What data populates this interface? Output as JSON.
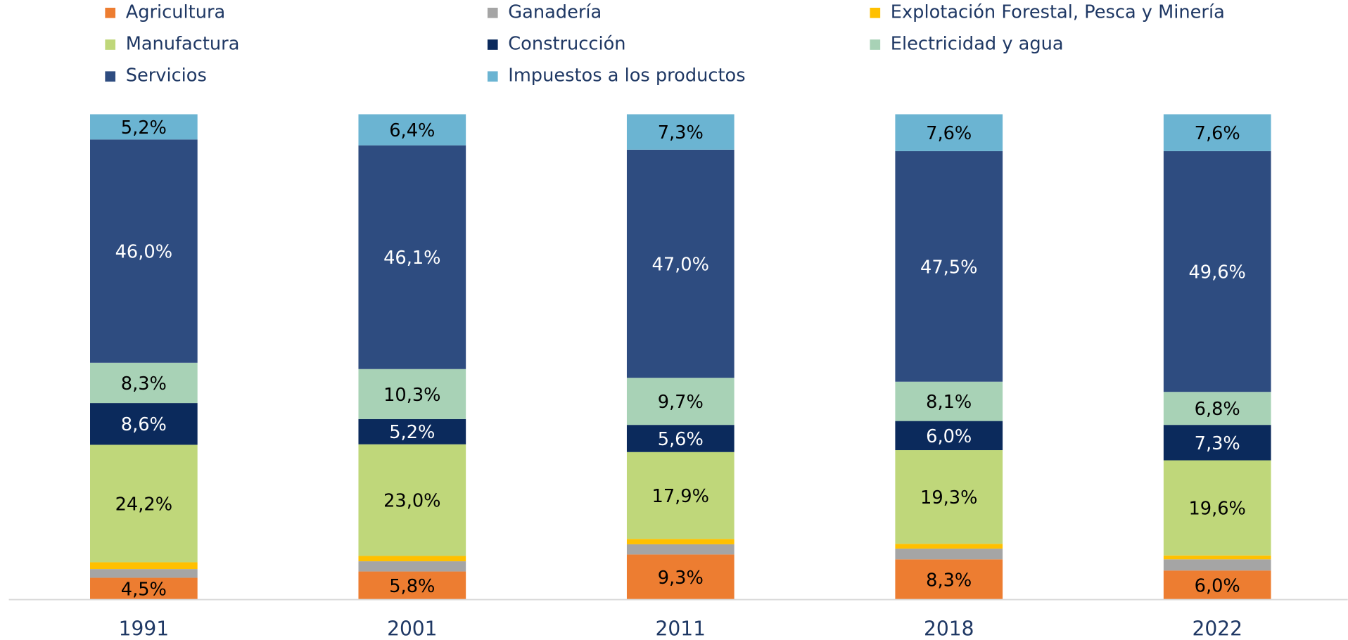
{
  "chart_data": {
    "type": "stacked_bar_100",
    "categories": [
      "1991",
      "2001",
      "2011",
      "2018",
      "2022"
    ],
    "ylim": [
      0,
      100
    ],
    "series": [
      {
        "name": "Agricultura",
        "color": "#ed7d31",
        "values": [
          4.5,
          5.8,
          9.3,
          8.3,
          6.0
        ],
        "value_labels": [
          "4,5%",
          "5,8%",
          "9,3%",
          "8,3%",
          "6,0%"
        ]
      },
      {
        "name": "Ganadería",
        "color": "#a5a5a5",
        "values": [
          1.8,
          2.1,
          2.1,
          2.2,
          2.3
        ]
      },
      {
        "name": "Explotación Forestal, Pesca y Minería",
        "color": "#ffc000",
        "values": [
          1.4,
          1.1,
          1.1,
          1.0,
          0.8
        ]
      },
      {
        "name": "Manufactura",
        "color": "#bfd77a",
        "values": [
          24.2,
          23.0,
          17.9,
          19.3,
          19.6
        ],
        "value_labels": [
          "24,2%",
          "23,0%",
          "17,9%",
          "19,3%",
          "19,6%"
        ]
      },
      {
        "name": "Construcción",
        "color": "#0b2a5c",
        "values": [
          8.6,
          5.2,
          5.6,
          6.0,
          7.3
        ],
        "value_labels": [
          "8,6%",
          "5,2%",
          "5,6%",
          "6,0%",
          "7,3%"
        ]
      },
      {
        "name": "Electricidad y agua",
        "color": "#a8d2b6",
        "values": [
          8.3,
          10.3,
          9.7,
          8.1,
          6.8
        ],
        "value_labels": [
          "8,3%",
          "10,3%",
          "9,7%",
          "8,1%",
          "6,8%"
        ]
      },
      {
        "name": "Servicios",
        "color": "#2e4c80",
        "values": [
          46.0,
          46.1,
          47.0,
          47.5,
          49.6
        ],
        "value_labels": [
          "46,0%",
          "46,1%",
          "47,0%",
          "47,5%",
          "49,6%"
        ]
      },
      {
        "name": "Impuestos a los productos",
        "color": "#6bb4d2",
        "values": [
          5.2,
          6.4,
          7.3,
          7.6,
          7.6
        ],
        "value_labels": [
          "5,2%",
          "6,4%",
          "7,3%",
          "7,6%",
          "7,6%"
        ]
      }
    ]
  }
}
